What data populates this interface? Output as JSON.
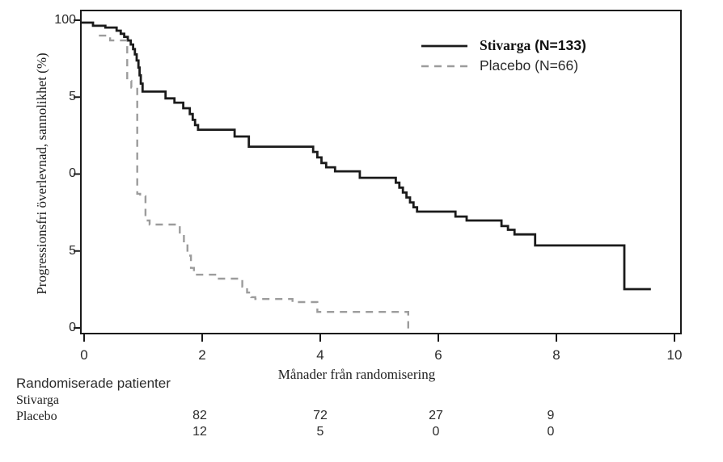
{
  "chart_data": {
    "type": "line",
    "subtype": "kaplan-meier-step-curves",
    "title": "",
    "xlabel": "Månader från randomisering",
    "ylabel": "Progressionsfri överlevnad, sannolikhet (%)",
    "xlim": [
      0,
      10
    ],
    "ylim": [
      0,
      100
    ],
    "grid": false,
    "legend_position": "top-right-inside",
    "x_ticks": [
      {
        "label": "0",
        "month": 0
      },
      {
        "label": "2",
        "month": 2
      },
      {
        "label": "4",
        "month": 4
      },
      {
        "label": "6",
        "month": 6
      },
      {
        "label": "8",
        "month": 8
      },
      {
        "label": "10",
        "month": 10
      }
    ],
    "y_ticks": [
      {
        "label": "100",
        "pct": 100
      },
      {
        "label": "5",
        "pct": 75
      },
      {
        "label": "0",
        "pct": 50
      },
      {
        "label": "5",
        "pct": 25
      },
      {
        "label": "0",
        "pct": 0
      }
    ],
    "legend": {
      "items": [
        {
          "name": "Stivarga",
          "n": "(N=133)",
          "line_style": "solid",
          "color": "#1b1b1b",
          "bold": true
        },
        {
          "name": "Placebo",
          "n": "(N=66)",
          "line_style": "dashed",
          "color": "#9c9c9c",
          "bold": false
        }
      ]
    },
    "series": [
      {
        "id": "stivarga",
        "name": "Stivarga (N=133)",
        "color": "#1b1b1b",
        "dash": null,
        "width": 2.8,
        "points_month_pct": [
          [
            -0.05,
            99.2
          ],
          [
            0.15,
            98.2
          ],
          [
            0.36,
            97.6
          ],
          [
            0.55,
            96.6
          ],
          [
            0.62,
            95.6
          ],
          [
            0.68,
            94.6
          ],
          [
            0.74,
            93.4
          ],
          [
            0.79,
            92.1
          ],
          [
            0.83,
            90.6
          ],
          [
            0.86,
            88.9
          ],
          [
            0.89,
            86.9
          ],
          [
            0.92,
            84.6
          ],
          [
            0.94,
            82.1
          ],
          [
            0.96,
            79.4
          ],
          [
            0.99,
            76.8
          ],
          [
            1.38,
            74.6
          ],
          [
            1.53,
            73.2
          ],
          [
            1.68,
            71.4
          ],
          [
            1.79,
            69.5
          ],
          [
            1.84,
            67.6
          ],
          [
            1.88,
            65.9
          ],
          [
            1.93,
            64.4
          ],
          [
            2.55,
            62.2
          ],
          [
            2.79,
            58.9
          ],
          [
            3.88,
            57.2
          ],
          [
            3.95,
            55.4
          ],
          [
            4.02,
            53.6
          ],
          [
            4.1,
            52.2
          ],
          [
            4.25,
            50.9
          ],
          [
            4.67,
            48.8
          ],
          [
            5.28,
            47.2
          ],
          [
            5.34,
            45.6
          ],
          [
            5.4,
            44.0
          ],
          [
            5.46,
            42.4
          ],
          [
            5.52,
            40.8
          ],
          [
            5.58,
            39.2
          ],
          [
            5.64,
            37.8
          ],
          [
            6.29,
            36.2
          ],
          [
            6.48,
            34.9
          ],
          [
            7.07,
            33.1
          ],
          [
            7.18,
            31.9
          ],
          [
            7.29,
            30.4
          ],
          [
            7.64,
            26.8
          ],
          [
            9.15,
            12.6
          ],
          [
            9.6,
            12.6
          ]
        ]
      },
      {
        "id": "placebo",
        "name": "Placebo (N=66)",
        "color": "#9c9c9c",
        "dash": "9 7",
        "width": 2.4,
        "points_month_pct": [
          [
            0.25,
            95.0
          ],
          [
            0.44,
            93.4
          ],
          [
            0.73,
            80.3
          ],
          [
            0.8,
            78.1
          ],
          [
            0.9,
            43.6
          ],
          [
            0.95,
            42.8
          ],
          [
            1.04,
            34.9
          ],
          [
            1.11,
            33.6
          ],
          [
            1.62,
            31.0
          ],
          [
            1.69,
            27.5
          ],
          [
            1.75,
            23.5
          ],
          [
            1.81,
            19.5
          ],
          [
            1.86,
            17.3
          ],
          [
            2.26,
            16.0
          ],
          [
            2.68,
            13.4
          ],
          [
            2.76,
            11.5
          ],
          [
            2.83,
            10.0
          ],
          [
            2.9,
            9.4
          ],
          [
            3.53,
            8.4
          ],
          [
            3.95,
            5.2
          ],
          [
            5.49,
            -0.5
          ]
        ]
      }
    ],
    "at_risk": {
      "header": "Randomiserade patienter",
      "group_labels": [
        "Stivarga",
        "Placebo"
      ],
      "time_points_months": [
        2,
        4,
        6,
        8
      ],
      "rows": [
        {
          "values": [
            "82",
            "72",
            "27",
            "9"
          ]
        },
        {
          "values": [
            "12",
            "5",
            "0",
            "0"
          ]
        }
      ]
    }
  }
}
